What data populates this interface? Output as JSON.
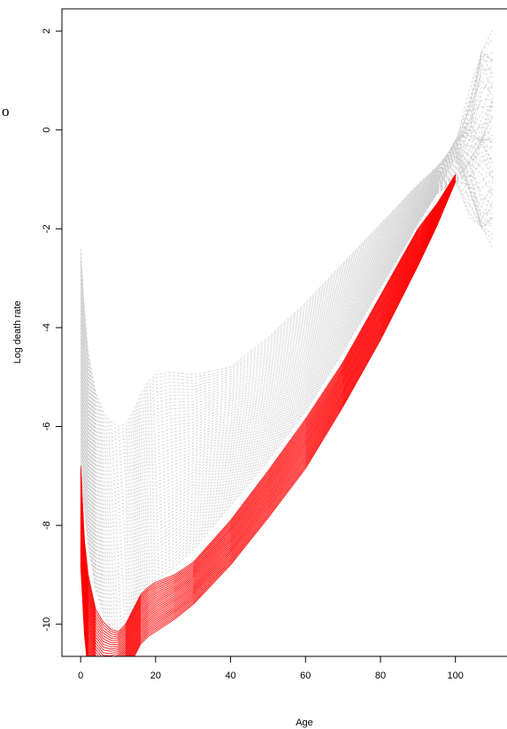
{
  "chart_data": {
    "type": "line",
    "title": "",
    "xlabel": "Age",
    "ylabel": "Log death rate",
    "xlim": [
      -5,
      114
    ],
    "ylim": [
      -10.65,
      2.45
    ],
    "x_ticks": [
      0,
      20,
      40,
      60,
      80,
      100
    ],
    "y_ticks": [
      2,
      0,
      -2,
      -4,
      -6,
      -8,
      -10
    ],
    "grid": false,
    "legend": "none",
    "colors": {
      "background_curves": "#cccccc",
      "highlighted_curves": "#ff0000",
      "axis": "#000000"
    },
    "series": [
      {
        "group": "gray-dashed-curves",
        "style": "dashed",
        "count": 60,
        "top_curve": {
          "x": [
            0,
            1,
            2,
            4,
            6,
            8,
            10,
            12,
            14,
            16,
            18,
            20,
            24,
            30,
            40,
            50,
            60,
            70,
            80,
            90,
            95,
            100,
            104,
            107,
            110
          ],
          "y": [
            -2.4,
            -3.6,
            -4.5,
            -5.3,
            -5.7,
            -5.9,
            -6.0,
            -5.95,
            -5.7,
            -5.35,
            -5.1,
            -4.95,
            -4.9,
            -4.95,
            -4.8,
            -4.2,
            -3.5,
            -2.7,
            -1.9,
            -1.1,
            -0.75,
            -0.3,
            0.6,
            1.5,
            1.7
          ]
        },
        "bottom_curve": {
          "x": [
            0,
            1,
            2,
            4,
            6,
            8,
            10,
            12,
            14,
            16,
            18,
            20,
            24,
            30,
            40,
            50,
            60,
            70,
            80,
            90,
            95,
            100,
            104,
            107,
            110
          ],
          "y": [
            -6.9,
            -7.7,
            -8.4,
            -9.3,
            -9.8,
            -10.1,
            -10.3,
            -10.2,
            -9.95,
            -9.6,
            -9.3,
            -9.1,
            -8.9,
            -8.5,
            -7.6,
            -6.7,
            -5.7,
            -4.5,
            -3.2,
            -1.9,
            -1.3,
            -0.8,
            -1.5,
            -2.1,
            -2.2
          ]
        }
      },
      {
        "group": "red-highlighted-curves",
        "style": "solid",
        "count": 30,
        "top_curve": {
          "x": [
            0,
            1,
            2,
            4,
            6,
            8,
            10,
            12,
            14,
            16,
            18,
            20,
            25,
            30,
            40,
            50,
            60,
            70,
            80,
            90,
            95,
            100
          ],
          "y": [
            -6.8,
            -8.3,
            -9.0,
            -9.7,
            -9.95,
            -10.1,
            -10.15,
            -10.0,
            -9.7,
            -9.4,
            -9.25,
            -9.15,
            -9.0,
            -8.75,
            -7.9,
            -6.9,
            -5.85,
            -4.7,
            -3.35,
            -2.0,
            -1.5,
            -0.9
          ]
        },
        "bottom_curve": {
          "x": [
            0,
            1,
            2,
            4,
            6,
            8,
            10,
            12,
            14,
            16,
            18,
            20,
            25,
            30,
            40,
            50,
            60,
            70,
            80,
            90,
            95,
            100
          ],
          "y": [
            -8.8,
            -10.2,
            -11.0,
            -11.5,
            -11.6,
            -11.4,
            -11.2,
            -11.0,
            -10.7,
            -10.4,
            -10.25,
            -10.15,
            -9.9,
            -9.6,
            -8.8,
            -7.85,
            -6.85,
            -5.6,
            -4.25,
            -2.75,
            -1.95,
            -1.05
          ]
        }
      }
    ]
  },
  "stray_text": "o"
}
